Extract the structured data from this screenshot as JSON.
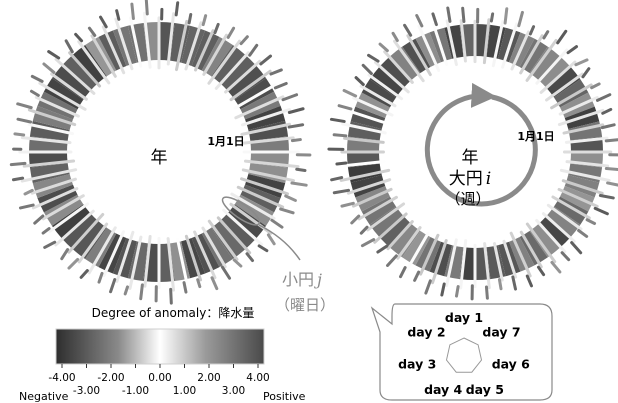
{
  "chart_data": {
    "type": "heatmap",
    "rings": [
      {
        "center_label": "年",
        "date_label": "1月1日",
        "callout_label": "小円",
        "callout_var": "j",
        "callout_sub": "（曜日）"
      },
      {
        "center_label": "年",
        "circle_label": "大円",
        "circle_var": "i",
        "circle_sub": "（週）",
        "date_label": "1月1日"
      }
    ],
    "legend": {
      "title": "Degree of anomaly：降水量",
      "ticks_top": [
        "-4.00",
        "-2.00",
        "0.00",
        "2.00",
        "4.00"
      ],
      "ticks_bottom": [
        "-3.00",
        "-1.00",
        "1.00",
        "3.00"
      ],
      "negative_label": "Negative",
      "positive_label": "Positive",
      "range": [
        -4,
        4
      ]
    },
    "day_diagram": {
      "days": [
        "day 1",
        "day 7",
        "day 6",
        "day 5",
        "day 4",
        "day 3",
        "day 2"
      ]
    },
    "colors": {
      "negative": "#3a3a3a",
      "zero": "#ffffff",
      "positive": "#555555",
      "arrow": "#8a8a8a"
    }
  }
}
